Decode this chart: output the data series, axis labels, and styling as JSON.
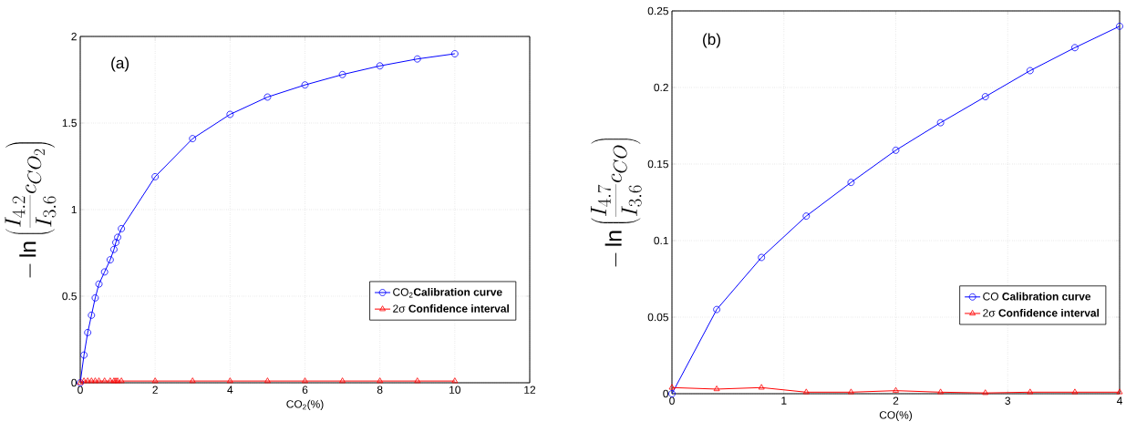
{
  "chart_data": [
    {
      "type": "line",
      "annotations": [
        "(a)"
      ],
      "xlabel": "CO$_{2}$(%)",
      "ylabel": "-\\ln\\left(\\frac{I_{4.2}}{I_{3.6}}c_{CO_2}\\right)",
      "xlim": [
        0,
        12
      ],
      "ylim": [
        0,
        2
      ],
      "xticks": [
        0,
        2,
        4,
        6,
        8,
        10,
        12
      ],
      "yticks": [
        0,
        0.5,
        1,
        1.5,
        2
      ],
      "grid": true,
      "legend": "bottom right",
      "line_style": "solid",
      "series": [
        {
          "name": "CO$_{2}$**Calibration curve**",
          "color": "#0000ff",
          "marker": "circle",
          "x": [
            0,
            0.1,
            0.2,
            0.3,
            0.4,
            0.5,
            0.65,
            0.8,
            0.9,
            0.95,
            1.0,
            1.1,
            2,
            3,
            4,
            5,
            6,
            7,
            8,
            9,
            10
          ],
          "values": [
            0,
            0.16,
            0.29,
            0.39,
            0.49,
            0.57,
            0.64,
            0.71,
            0.77,
            0.81,
            0.84,
            0.89,
            1.19,
            1.41,
            1.55,
            1.65,
            1.72,
            1.78,
            1.83,
            1.87,
            1.9
          ]
        },
        {
          "name": "2σ **Confidence interval**",
          "color": "#ff0000",
          "marker": "triangle",
          "x": [
            0,
            0.1,
            0.2,
            0.3,
            0.4,
            0.5,
            0.65,
            0.8,
            0.9,
            0.95,
            1.0,
            1.1,
            2,
            3,
            4,
            5,
            6,
            7,
            8,
            9,
            10
          ],
          "values": [
            0,
            0.01,
            0.01,
            0.01,
            0.01,
            0.01,
            0.01,
            0.01,
            0.01,
            0.01,
            0.01,
            0.01,
            0.01,
            0.01,
            0.01,
            0.01,
            0.01,
            0.01,
            0.01,
            0.01,
            0.01
          ]
        }
      ]
    },
    {
      "type": "line",
      "annotations": [
        "(b)"
      ],
      "xlabel": "CO(%)",
      "ylabel": "-\\ln\\left(\\frac{I_{4.7}}{I_{3.6}}c_{CO}\\right)",
      "xlim": [
        0,
        4
      ],
      "ylim": [
        0,
        0.25
      ],
      "xticks": [
        0,
        1,
        2,
        3,
        4
      ],
      "yticks": [
        0,
        0.05,
        0.1,
        0.15,
        0.2,
        0.25
      ],
      "grid": true,
      "legend": "bottom right",
      "line_style": "solid",
      "series": [
        {
          "name": "CO **Calibration curve**",
          "color": "#0000ff",
          "marker": "circle",
          "x": [
            0,
            0.4,
            0.8,
            1.2,
            1.6,
            2.0,
            2.4,
            2.8,
            3.2,
            3.6,
            4.0
          ],
          "values": [
            0,
            0.055,
            0.089,
            0.116,
            0.138,
            0.159,
            0.177,
            0.194,
            0.211,
            0.226,
            0.24
          ]
        },
        {
          "name": "2σ **Confidence interval**",
          "color": "#ff0000",
          "marker": "triangle",
          "x": [
            0,
            0.4,
            0.8,
            1.2,
            1.6,
            2.0,
            2.4,
            2.8,
            3.2,
            3.6,
            4.0
          ],
          "values": [
            0.004,
            0.003,
            0.004,
            0.001,
            0.001,
            0.002,
            0.001,
            0.0005,
            0.001,
            0.001,
            0.001
          ]
        }
      ]
    }
  ]
}
